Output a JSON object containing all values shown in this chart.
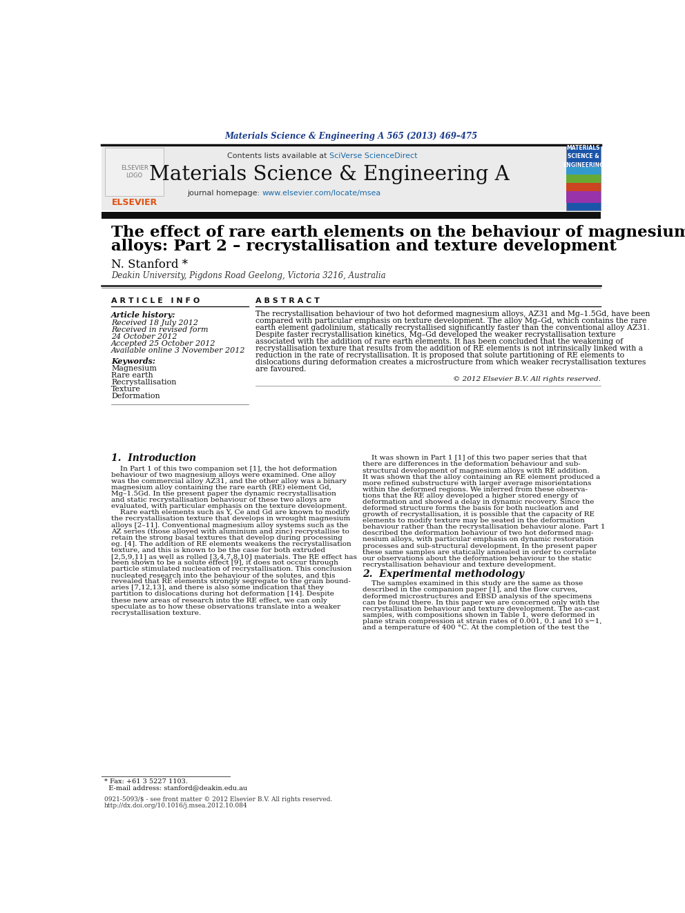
{
  "journal_ref": "Materials Science & Engineering A 565 (2013) 469–475",
  "contents_line": "Contents lists available at SciVerse ScienceDirect",
  "journal_name": "Materials Science & Engineering A",
  "journal_url": "journal homepage: www.elsevier.com/locate/msea",
  "title_line1": "The effect of rare earth elements on the behaviour of magnesium-based",
  "title_line2": "alloys: Part 2 – recrystallisation and texture development",
  "author": "N. Stanford *",
  "affiliation": "Deakin University, Pigdons Road Geelong, Victoria 3216, Australia",
  "article_info_header": "A R T I C L E   I N F O",
  "abstract_header": "A B S T R A C T",
  "article_history_label": "Article history:",
  "received": "Received 18 July 2012",
  "received_revised": "Received in revised form",
  "received_date": "24 October 2012",
  "accepted": "Accepted 25 October 2012",
  "available": "Available online 3 November 2012",
  "keywords_label": "Keywords:",
  "keywords": [
    "Magnesium",
    "Rare earth",
    "Recrystallisation",
    "Texture",
    "Deformation"
  ],
  "abstract_text": "The recrystallisation behaviour of two hot deformed magnesium alloys, AZ31 and Mg–1.5Gd, have been\ncompared with particular emphasis on texture development. The alloy Mg–Gd, which contains the rare\nearth element gadolinium, statically recrystallised significantly faster than the conventional alloy AZ31.\nDespite faster recrystallisation kinetics, Mg–Gd developed the weaker recrystallisation texture\nassociated with the addition of rare earth elements. It has been concluded that the weakening of\nrecrystallisation texture that results from the addition of RE elements is not intrinsically linked with a\nreduction in the rate of recrystallisation. It is proposed that solute partitioning of RE elements to\ndislocations during deformation creates a microstructure from which weaker recrystallisation textures\nare favoured.",
  "copyright": "© 2012 Elsevier B.V. All rights reserved.",
  "section1_heading": "1.  Introduction",
  "intro_col1": "    In Part 1 of this two companion set [1], the hot deformation\nbehaviour of two magnesium alloys were examined. One alloy\nwas the commercial alloy AZ31, and the other alloy was a binary\nmagnesium alloy containing the rare earth (RE) element Gd,\nMg–1.5Gd. In the present paper the dynamic recrystallisation\nand static recrystallisation behaviour of these two alloys are\nevaluated, with particular emphasis on the texture development.\n    Rare earth elements such as Y, Ce and Gd are known to modify\nthe recrystallisation texture that develops in wrought magnesium\nalloys [2–11]. Conventional magnesium alloy systems such as the\nAZ series (those alloyed with aluminium and zinc) recrystallise to\nretain the strong basal textures that develop during processing\neg. [4]. The addition of RE elements weakens the recrystallisation\ntexture, and this is known to be the case for both extruded\n[2,5,9,11] as well as rolled [3,4,7,8,10] materials. The RE effect has\nbeen shown to be a solute effect [9], it does not occur through\nparticle stimulated nucleation of recrystallisation. This conclusion\nnucleated research into the behaviour of the solutes, and this\nrevealed that RE elements strongly segregate to the grain bound-\naries [7,12,13], and there is also some indication that they\npartition to dislocations during hot deformation [14]. Despite\nthese new areas of research into the RE effect, we can only\nspeculate as to how these observations translate into a weaker\nrecrystallisation texture.",
  "intro_col2": "    It was shown in Part 1 [1] of this two paper series that that\nthere are differences in the deformation behaviour and sub-\nstructural development of magnesium alloys with RE addition.\nIt was shown that the alloy containing an RE element produced a\nmore refined substructure with larger average misorientations\nwithin the deformed regions. We inferred from these observa-\ntions that the RE alloy developed a higher stored energy of\ndeformation and showed a delay in dynamic recovery. Since the\ndeformed structure forms the basis for both nucleation and\ngrowth of recrystallisation, it is possible that the capacity of RE\nelements to modify texture may be seated in the deformation\nbehaviour rather than the recrystallisation behaviour alone. Part 1\ndescribed the deformation behaviour of two hot deformed mag-\nnesium alloys, with particular emphasis on dynamic restoration\nprocesses and sub-structural development. In the present paper\nthese same samples are statically annealed in order to correlate\nour observations about the deformation behaviour to the static\nrecrystallisation behaviour and texture development.",
  "section2_heading": "2.  Experimental methodology",
  "section2_col2": "    The samples examined in this study are the same as those\ndescribed in the companion paper [1], and the flow curves,\ndeformed microstructures and EBSD analysis of the specimens\ncan be found there. In this paper we are concerned only with the\nrecrystallisation behaviour and texture development. The as-cast\nsamples, with compositions shown in Table 1, were deformed in\nplane strain compression at strain rates of 0.001, 0.1 and 10 s−1,\nand a temperature of 400 °C. At the completion of the test the",
  "footnote_line1": "* Fax: +61 3 5227 1103.",
  "footnote_line2": "  E-mail address: stanford@deakin.edu.au",
  "footer_left1": "0921-5093/$ - see front matter © 2012 Elsevier B.V. All rights reserved.",
  "footer_left2": "http://dx.doi.org/10.1016/j.msea.2012.10.084",
  "bg_color": "#ffffff",
  "header_bg": "#ebebeb",
  "dark_bar_color": "#1a1a1a",
  "journal_ref_color": "#1a3a8a",
  "link_color": "#1a6aaa",
  "title_color": "#000000",
  "body_color": "#000000"
}
